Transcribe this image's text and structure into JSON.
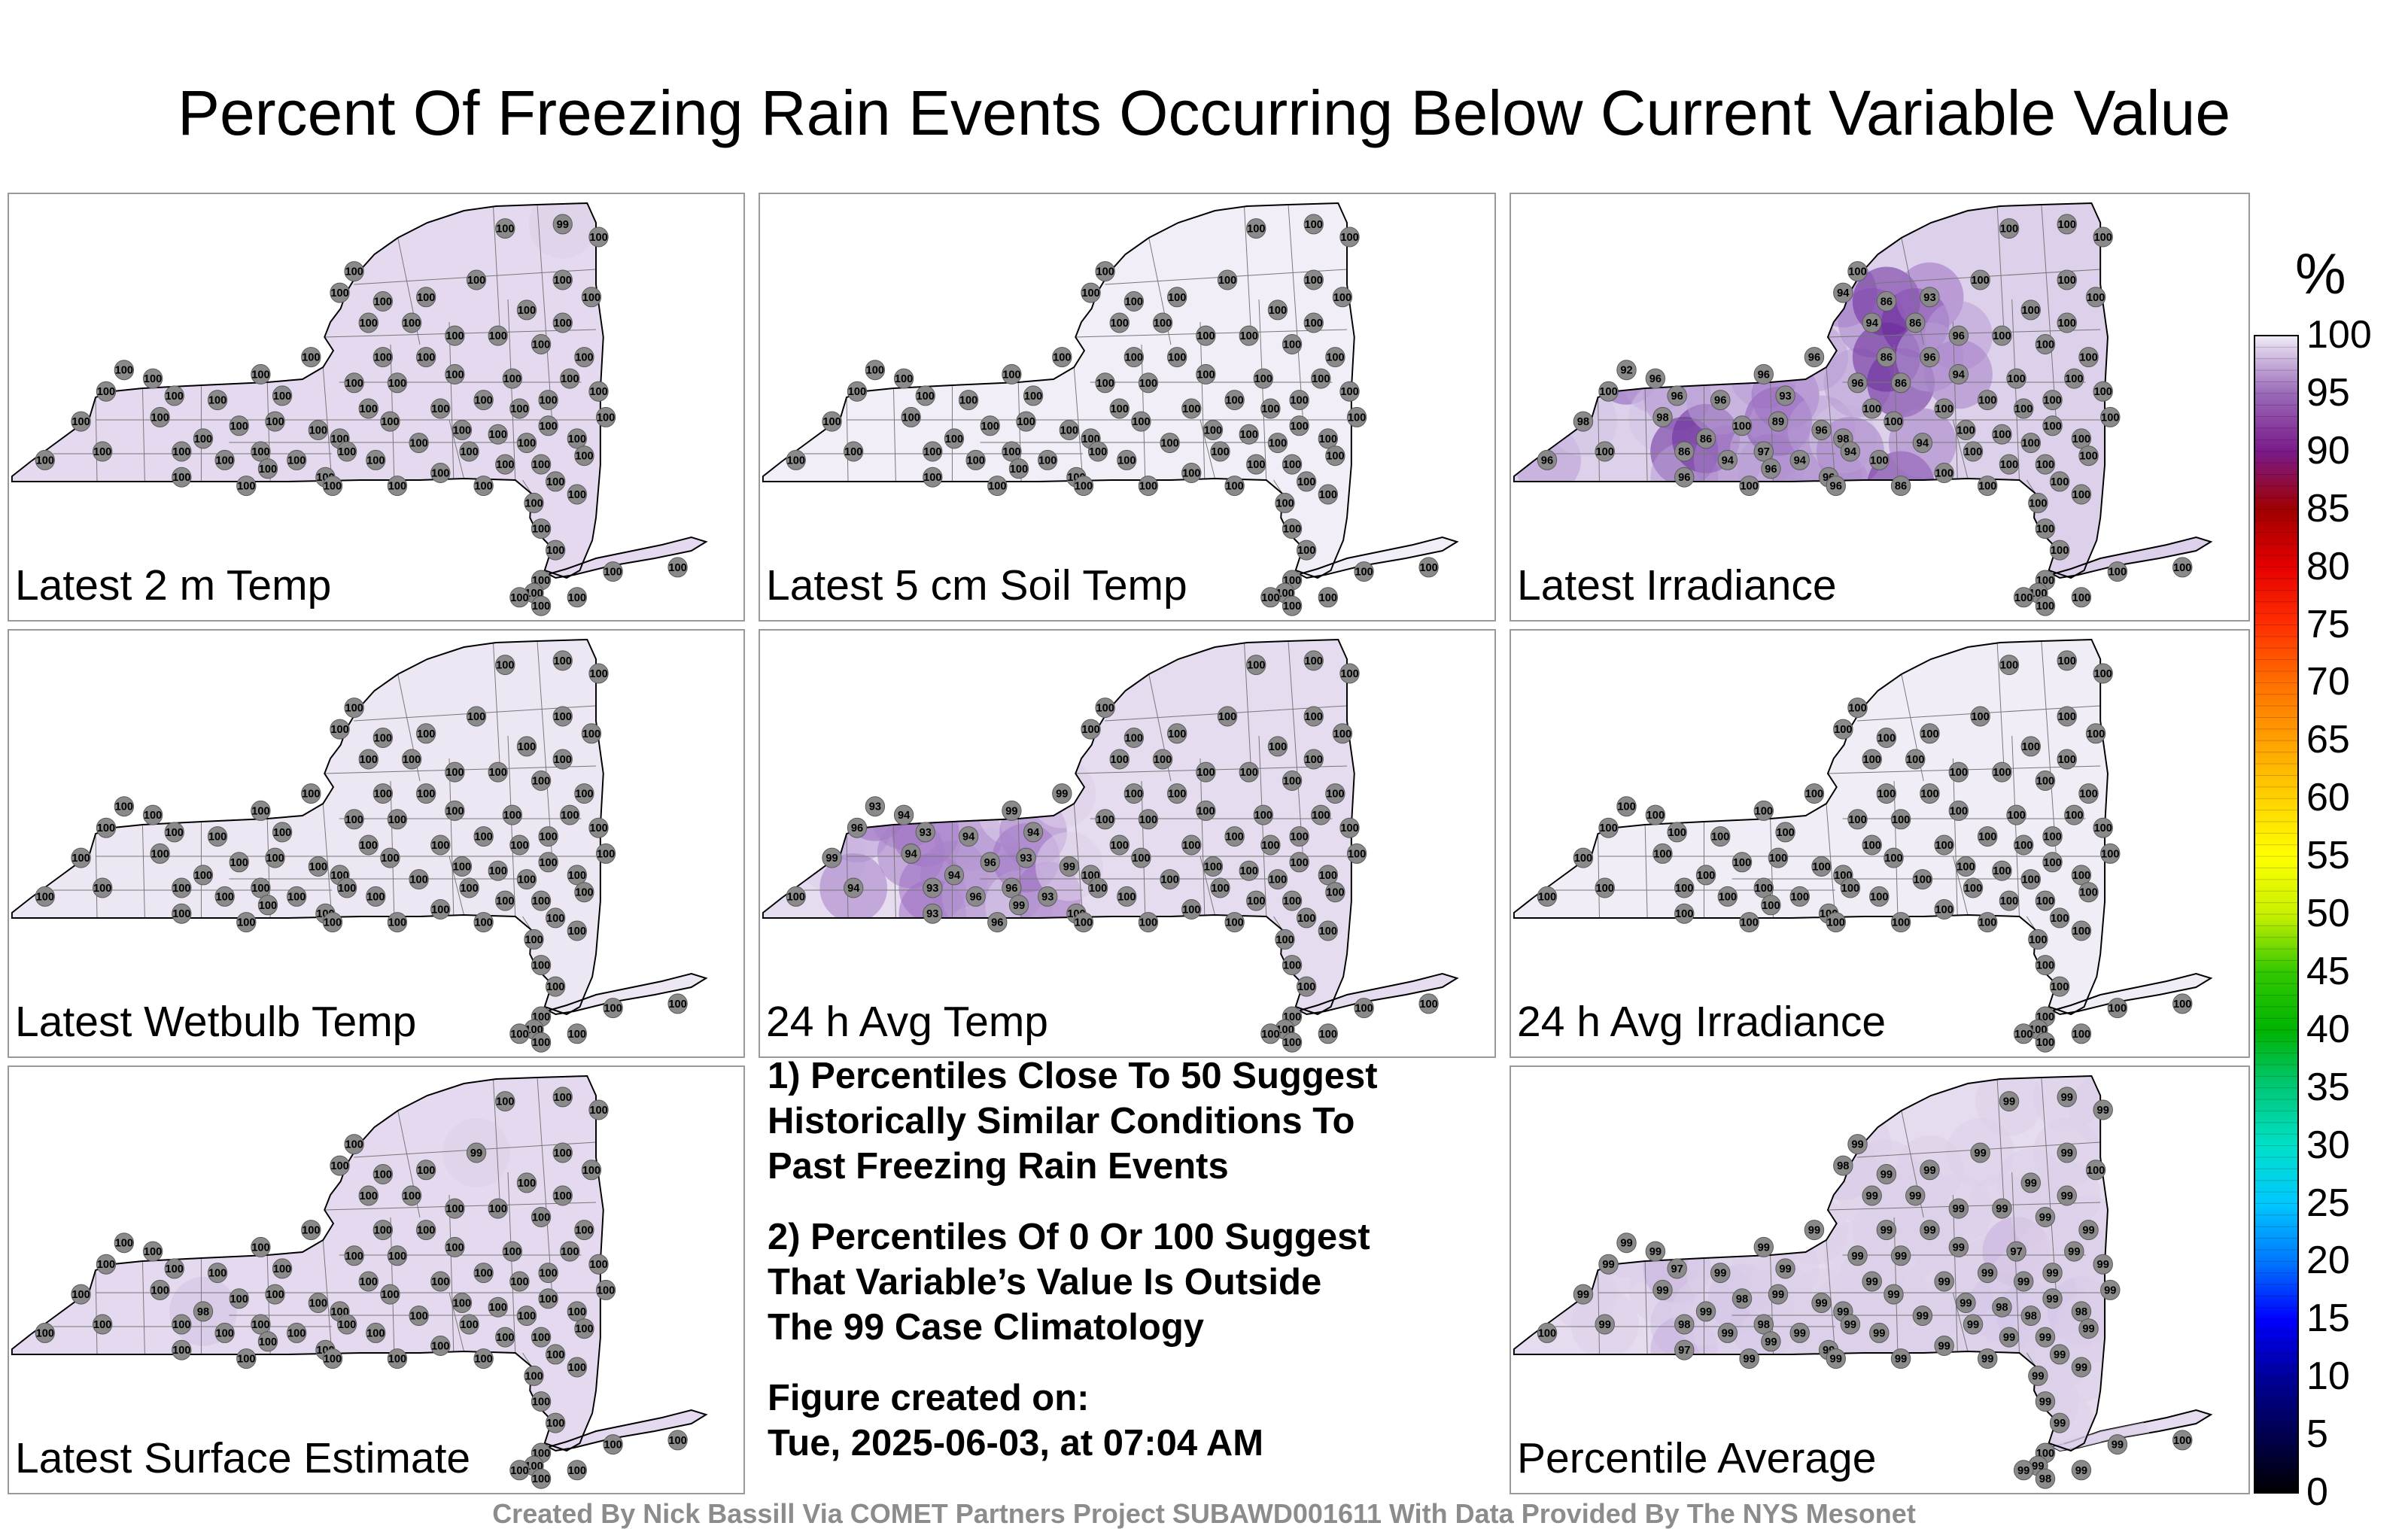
{
  "title": "Percent Of Freezing Rain Events Occurring Below Current Variable Value",
  "credit": "Created By Nick Bassill Via COMET Partners Project SUBAWD001611 With Data Provided By The NYS Mesonet",
  "notes": [
    "1) Percentiles Close To 50 Suggest\nHistorically Similar Conditions To\nPast Freezing Rain Events",
    "2) Percentiles Of 0 Or 100 Suggest\nThat Variable’s Value Is Outside\nThe 99 Case Climatology",
    "Figure created on:\nTue, 2025-06-03, at 07:04 AM"
  ],
  "colorbar": {
    "unit": "%",
    "ticks": [
      "100",
      "95",
      "90",
      "85",
      "80",
      "75",
      "70",
      "65",
      "60",
      "55",
      "50",
      "45",
      "40",
      "35",
      "30",
      "25",
      "20",
      "15",
      "10",
      "5",
      "0"
    ],
    "stops": [
      "#000000",
      "#000050",
      "#00009a",
      "#0000ff",
      "#0078ff",
      "#00c8ff",
      "#00e0c8",
      "#00c878",
      "#00b400",
      "#32c800",
      "#c8f000",
      "#ffff00",
      "#ffd200",
      "#ffa000",
      "#ff7000",
      "#ff3000",
      "#e60000",
      "#a00000",
      "#7a1a8a",
      "#9a6ab8",
      "#f0ecf8"
    ]
  },
  "chart_data": [
    {
      "type": "map",
      "title": "Latest 2 m Temp",
      "station_values": [
        "100",
        "100",
        "100",
        "100",
        "100",
        "100",
        "100",
        "100",
        "100",
        "100",
        "100",
        "100",
        "100",
        "100",
        "100",
        "100",
        "100",
        "100",
        "100",
        "100",
        "100",
        "100",
        "100",
        "100",
        "100",
        "100",
        "100",
        "100",
        "100",
        "100",
        "100",
        "100",
        "100",
        "100",
        "100",
        "100",
        "100",
        "100",
        "100",
        "100",
        "100",
        "100",
        "100",
        "100",
        "100",
        "100",
        "100",
        "100",
        "100",
        "100",
        "100",
        "100",
        "100",
        "100",
        "100",
        "100",
        "100",
        "100",
        "100",
        "100",
        "100",
        "100",
        "100",
        "100",
        "100",
        "100",
        "100",
        "99",
        "100",
        "100",
        "100",
        "100",
        "100",
        "100",
        "100",
        "100",
        "100",
        "100",
        "100",
        "100",
        "100",
        "100",
        "100",
        "100",
        "100",
        "100"
      ],
      "fill": "#e4d9ee"
    },
    {
      "type": "map",
      "title": "Latest 5 cm Soil Temp",
      "station_values": [
        "100",
        "100",
        "100",
        "100",
        "100",
        "100",
        "100",
        "100",
        "100",
        "100",
        "100",
        "100",
        "100",
        "100",
        "100",
        "100",
        "100",
        "100",
        "100",
        "100",
        "100",
        "100",
        "100",
        "100",
        "100",
        "100",
        "100",
        "100",
        "100",
        "100",
        "100",
        "100",
        "100",
        "100",
        "100",
        "100",
        "100",
        "100",
        "100",
        "100",
        "100",
        "100",
        "100",
        "100",
        "100",
        "100",
        "100",
        "100",
        "100",
        "100",
        "100",
        "100",
        "100",
        "100",
        "100",
        "100",
        "100",
        "100",
        "100",
        "100",
        "100",
        "100",
        "100",
        "100",
        "100",
        "100",
        "100",
        "100",
        "100",
        "100",
        "100",
        "100",
        "100",
        "100",
        "100",
        "100",
        "100",
        "100",
        "100",
        "100",
        "100",
        "100",
        "100",
        "100",
        "100",
        "100"
      ],
      "fill": "#f2eef7"
    },
    {
      "type": "map",
      "title": "Latest Irradiance",
      "station_values": [
        "96",
        "98",
        "100",
        "100",
        "92",
        "96",
        "98",
        "96",
        "86",
        "96",
        "86",
        "96",
        "94",
        "100",
        "100",
        "96",
        "97",
        "96",
        "89",
        "93",
        "94",
        "96",
        "96",
        "96",
        "96",
        "98",
        "94",
        "94",
        "96",
        "100",
        "94",
        "100",
        "100",
        "86",
        "86",
        "100",
        "86",
        "86",
        "86",
        "94",
        "93",
        "96",
        "100",
        "100",
        "96",
        "94",
        "100",
        "100",
        "100",
        "100",
        "100",
        "100",
        "100",
        "100",
        "100",
        "100",
        "100",
        "100",
        "100",
        "100",
        "100",
        "100",
        "100",
        "100",
        "100",
        "100",
        "100",
        "100",
        "100",
        "100",
        "100",
        "100",
        "100",
        "100",
        "100",
        "100",
        "100",
        "100",
        "100",
        "100",
        "100",
        "100",
        "100",
        "100",
        "100",
        "100"
      ],
      "fill": "#ddd0ea"
    },
    {
      "type": "map",
      "title": "Latest Wetbulb Temp",
      "station_values": [
        "100",
        "100",
        "100",
        "100",
        "100",
        "100",
        "100",
        "100",
        "100",
        "100",
        "100",
        "100",
        "100",
        "100",
        "100",
        "100",
        "100",
        "100",
        "100",
        "100",
        "100",
        "100",
        "100",
        "100",
        "100",
        "100",
        "100",
        "100",
        "100",
        "100",
        "100",
        "100",
        "100",
        "100",
        "100",
        "100",
        "100",
        "100",
        "100",
        "100",
        "100",
        "100",
        "100",
        "100",
        "100",
        "100",
        "100",
        "100",
        "100",
        "100",
        "100",
        "100",
        "100",
        "100",
        "100",
        "100",
        "100",
        "100",
        "100",
        "100",
        "100",
        "100",
        "100",
        "100",
        "100",
        "100",
        "100",
        "100",
        "100",
        "100",
        "100",
        "100",
        "100",
        "100",
        "100",
        "100",
        "100",
        "100",
        "100",
        "100",
        "100",
        "100",
        "100",
        "100",
        "100",
        "100"
      ],
      "fill": "#ede7f3"
    },
    {
      "type": "map",
      "title": "24 h Avg Temp",
      "station_values": [
        "100",
        "99",
        "96",
        "94",
        "93",
        "94",
        "94",
        "93",
        "93",
        "93",
        "94",
        "94",
        "96",
        "96",
        "96",
        "99",
        "96",
        "99",
        "93",
        "94",
        "93",
        "99",
        "99",
        "100",
        "100",
        "100",
        "100",
        "100",
        "100",
        "100",
        "100",
        "100",
        "100",
        "100",
        "100",
        "100",
        "100",
        "100",
        "100",
        "100",
        "100",
        "100",
        "100",
        "100",
        "100",
        "100",
        "100",
        "100",
        "100",
        "100",
        "100",
        "100",
        "100",
        "100",
        "100",
        "100",
        "100",
        "100",
        "100",
        "100",
        "100",
        "100",
        "100",
        "100",
        "100",
        "100",
        "100",
        "100",
        "100",
        "100",
        "100",
        "100",
        "100",
        "100",
        "100",
        "100",
        "100",
        "100",
        "100",
        "100",
        "100",
        "100",
        "100",
        "100",
        "100",
        "100"
      ],
      "fill": "#e6dcef"
    },
    {
      "type": "map",
      "title": "24 h Avg Irradiance",
      "station_values": [
        "100",
        "100",
        "100",
        "100",
        "100",
        "100",
        "100",
        "100",
        "100",
        "100",
        "100",
        "100",
        "100",
        "100",
        "100",
        "100",
        "100",
        "100",
        "100",
        "100",
        "100",
        "100",
        "100",
        "100",
        "100",
        "100",
        "100",
        "100",
        "100",
        "100",
        "100",
        "100",
        "100",
        "100",
        "100",
        "100",
        "100",
        "100",
        "100",
        "100",
        "100",
        "100",
        "100",
        "100",
        "100",
        "100",
        "100",
        "100",
        "100",
        "100",
        "100",
        "100",
        "100",
        "100",
        "100",
        "100",
        "100",
        "100",
        "100",
        "100",
        "100",
        "100",
        "100",
        "100",
        "100",
        "100",
        "100",
        "100",
        "100",
        "100",
        "100",
        "100",
        "100",
        "100",
        "100",
        "100",
        "100",
        "100",
        "100",
        "100",
        "100",
        "100",
        "100",
        "100",
        "100",
        "100"
      ],
      "fill": "#f1edf6"
    },
    {
      "type": "map",
      "title": "Latest Surface Estimate",
      "station_values": [
        "100",
        "100",
        "100",
        "100",
        "100",
        "100",
        "100",
        "100",
        "100",
        "100",
        "98",
        "100",
        "100",
        "100",
        "100",
        "100",
        "100",
        "100",
        "100",
        "100",
        "100",
        "100",
        "100",
        "100",
        "100",
        "100",
        "100",
        "100",
        "100",
        "100",
        "100",
        "100",
        "100",
        "100",
        "100",
        "100",
        "100",
        "100",
        "100",
        "100",
        "100",
        "100",
        "100",
        "100",
        "100",
        "100",
        "100",
        "100",
        "99",
        "100",
        "100",
        "100",
        "100",
        "100",
        "100",
        "100",
        "100",
        "100",
        "100",
        "100",
        "100",
        "100",
        "100",
        "100",
        "100",
        "100",
        "100",
        "100",
        "100",
        "100",
        "100",
        "100",
        "100",
        "100",
        "100",
        "100",
        "100",
        "100",
        "100",
        "100",
        "100",
        "100",
        "100",
        "100",
        "100",
        "100"
      ],
      "fill": "#e4d9ee"
    },
    {
      "type": "map",
      "title": "Percentile Average",
      "station_values": [
        "100",
        "99",
        "99",
        "99",
        "99",
        "99",
        "99",
        "97",
        "98",
        "97",
        "99",
        "99",
        "99",
        "98",
        "99",
        "99",
        "98",
        "99",
        "99",
        "99",
        "99",
        "99",
        "99",
        "99",
        "99",
        "99",
        "99",
        "98",
        "99",
        "99",
        "99",
        "99",
        "99",
        "99",
        "99",
        "99",
        "99",
        "99",
        "99",
        "99",
        "99",
        "99",
        "99",
        "99",
        "99",
        "99",
        "99",
        "99",
        "99",
        "99",
        "99",
        "99",
        "98",
        "99",
        "99",
        "97",
        "99",
        "99",
        "98",
        "99",
        "99",
        "99",
        "99",
        "99",
        "99",
        "99",
        "99",
        "99",
        "99",
        "99",
        "99",
        "98",
        "99",
        "99",
        "99",
        "100",
        "99",
        "99",
        "99",
        "100",
        "99",
        "99",
        "98",
        "99",
        "99",
        "100"
      ],
      "fill": "#e6dcef"
    }
  ]
}
